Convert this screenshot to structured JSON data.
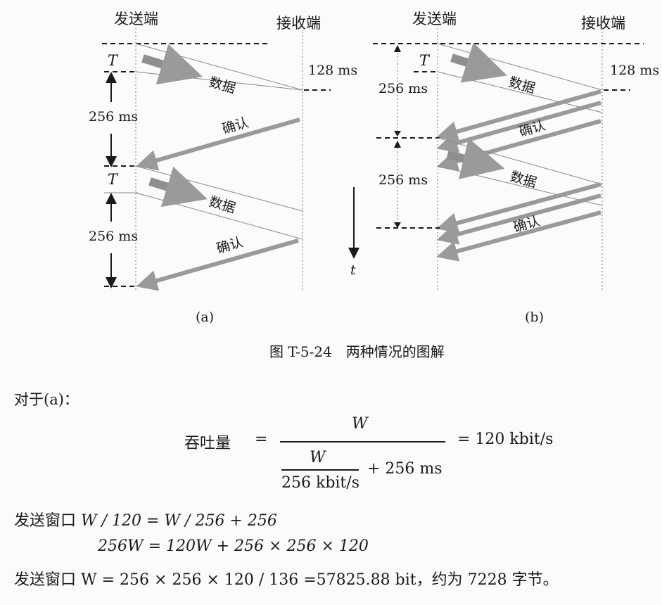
{
  "diagram": {
    "sender_a": "发送端",
    "receiver_a": "接收端",
    "sender_b": "发送端",
    "receiver_b": "接收端",
    "T": "T",
    "ms128": "128 ms",
    "ms256": "256 ms",
    "data": "数据",
    "ack": "确认",
    "t": "t",
    "sub_a": "(a)",
    "sub_b": "(b)"
  },
  "caption": "图 T-5-24　两种情况的图解",
  "text": {
    "for_a": "对于(a)：",
    "throughput": "吞吐量",
    "equals": "=",
    "W": "W",
    "result": "= 120 kbit/s",
    "rate": "256 kbit/s",
    "plus_ms": "+  256 ms",
    "line1_label": "发送窗口",
    "line1_expr": "W / 120 = W / 256 + 256",
    "line2_expr": "256W = 120W + 256 × 256 × 120",
    "line3_label": "发送窗口",
    "line3_expr": "W = 256 × 256 × 120 / 136 =57825.88 bit，约为 7228 字节。"
  },
  "colors": {
    "arrow": "#9a9a9a",
    "ink": "#1a1a1a"
  }
}
